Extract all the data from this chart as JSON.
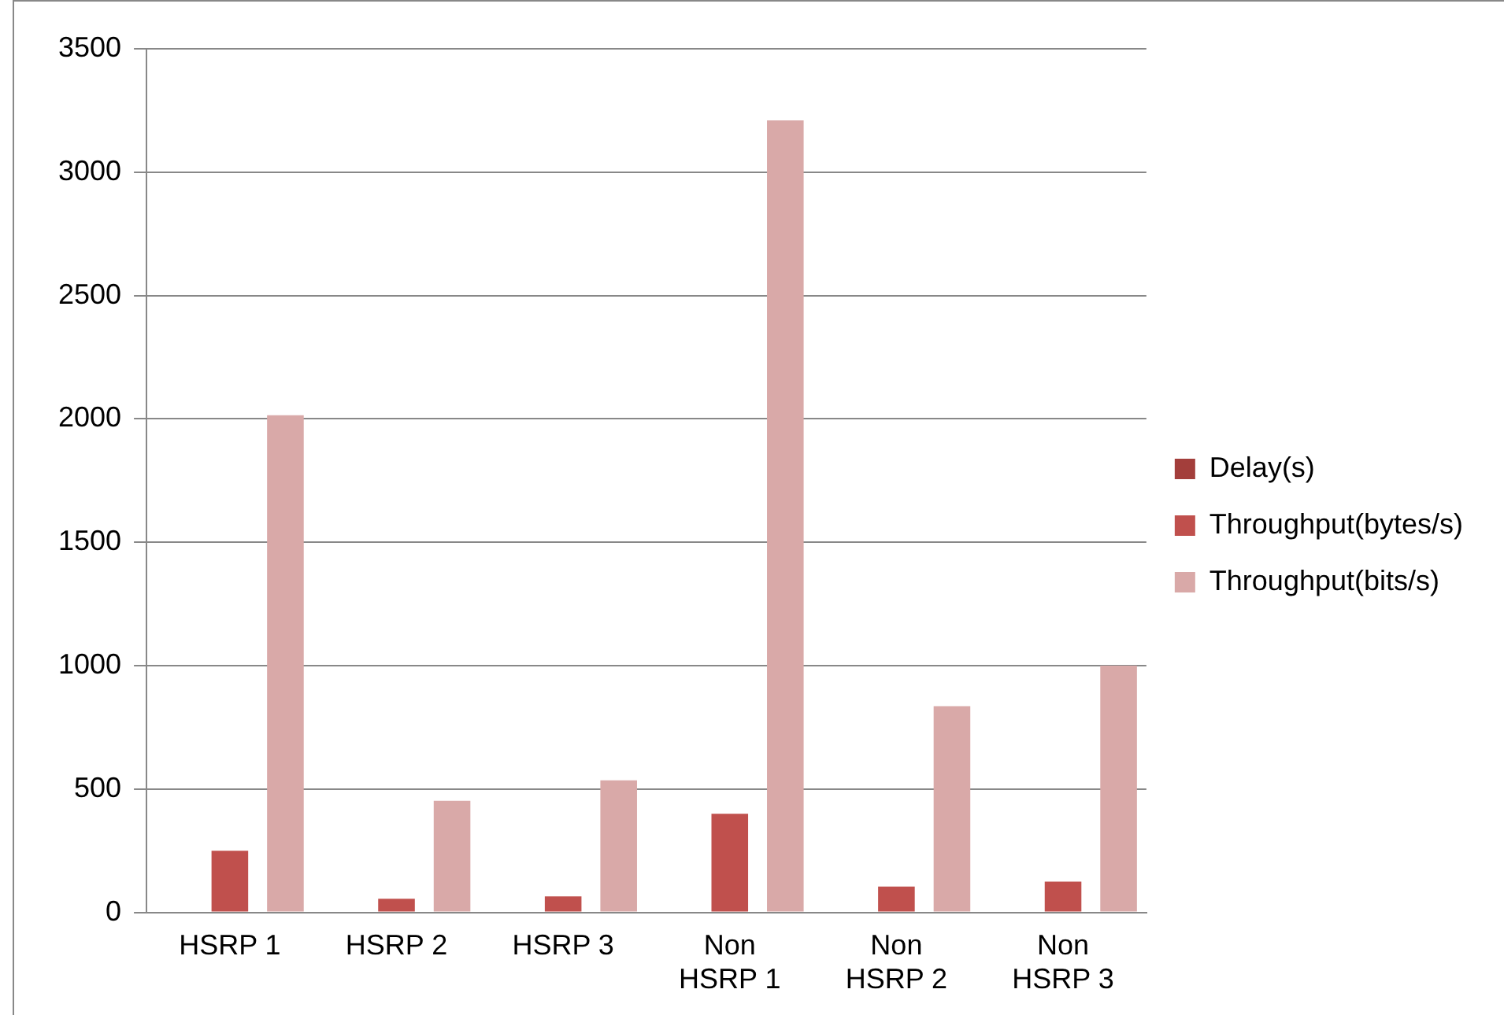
{
  "chart_data": {
    "type": "bar",
    "categories": [
      "HSRP 1",
      "HSRP 2",
      "HSRP 3",
      "Non HSRP 1",
      "Non HSRP 2",
      "Non HSRP 3"
    ],
    "series": [
      {
        "name": "Delay(s)",
        "color": "#a33e3b",
        "values": [
          0,
          0,
          0,
          0,
          0,
          0
        ]
      },
      {
        "name": "Throughput(bytes/s)",
        "color": "#c0504d",
        "values": [
          250,
          55,
          65,
          400,
          105,
          125
        ]
      },
      {
        "name": "Throughput(bits/s)",
        "color": "#d9a9a8",
        "values": [
          2015,
          452,
          535,
          3210,
          836,
          1000
        ]
      }
    ],
    "ylim": [
      0,
      3500
    ],
    "yticks": [
      0,
      500,
      1000,
      1500,
      2000,
      2500,
      3000,
      3500
    ],
    "grid": "y",
    "legend": "right"
  }
}
